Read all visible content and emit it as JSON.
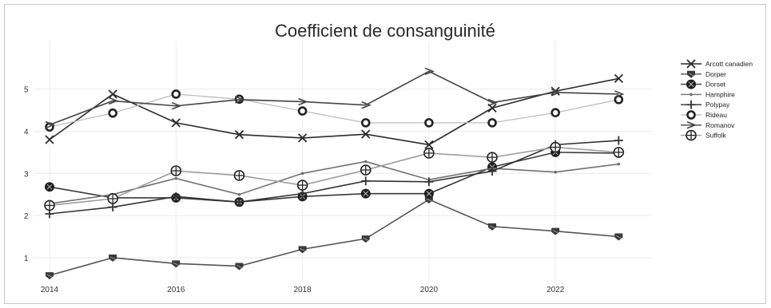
{
  "chart_data": {
    "type": "line",
    "title": "Coefficient de consanguinité",
    "xlabel": "",
    "ylabel": "",
    "x": [
      2014,
      2015,
      2016,
      2017,
      2018,
      2019,
      2020,
      2021,
      2022,
      2023
    ],
    "xlim": [
      2014,
      2023.4
    ],
    "ylim": [
      0.45,
      5.75
    ],
    "x_ticks": [
      2014,
      2016,
      2018,
      2020,
      2022
    ],
    "y_ticks": [
      1,
      2,
      3,
      4,
      5
    ],
    "grid": true,
    "legend_position": "right",
    "series": [
      {
        "name": "Arcott canadien",
        "marker": "x",
        "color": "#2b2b2b",
        "values": [
          3.8,
          4.88,
          4.2,
          3.92,
          3.84,
          3.93,
          3.68,
          4.55,
          4.95,
          5.25
        ]
      },
      {
        "name": "Dorper",
        "marker": "shield",
        "color": "#555555",
        "values": [
          0.58,
          1.0,
          0.86,
          0.8,
          1.2,
          1.45,
          2.38,
          1.74,
          1.63,
          1.5
        ]
      },
      {
        "name": "Dorset",
        "marker": "circle-x",
        "color": "#3a3a3a",
        "values": [
          2.68,
          2.42,
          2.42,
          2.32,
          2.45,
          2.52,
          2.52,
          3.15,
          3.5,
          3.48
        ]
      },
      {
        "name": "Hamphire",
        "marker": "dot",
        "color": "#707070",
        "values": [
          2.28,
          2.5,
          2.88,
          2.5,
          3.0,
          3.28,
          2.85,
          3.12,
          3.03,
          3.22
        ]
      },
      {
        "name": "Polypay",
        "marker": "plus",
        "color": "#333333",
        "values": [
          2.04,
          2.2,
          2.45,
          2.32,
          2.52,
          2.82,
          2.8,
          3.05,
          3.68,
          3.78
        ]
      },
      {
        "name": "Rideau",
        "marker": "ring",
        "color": "#bdbdbd",
        "values": [
          4.1,
          4.43,
          4.88,
          4.76,
          4.48,
          4.2,
          4.2,
          4.2,
          4.44,
          4.75
        ]
      },
      {
        "name": "Romanov",
        "marker": "chevron",
        "color": "#444444",
        "values": [
          4.15,
          4.72,
          4.6,
          4.75,
          4.7,
          4.62,
          5.42,
          4.68,
          4.92,
          4.88
        ]
      },
      {
        "name": "Suffolk",
        "marker": "circle-plus",
        "color": "#9e9e9e",
        "values": [
          2.24,
          2.4,
          3.06,
          2.95,
          2.72,
          3.08,
          3.48,
          3.38,
          3.62,
          3.5
        ]
      }
    ]
  }
}
